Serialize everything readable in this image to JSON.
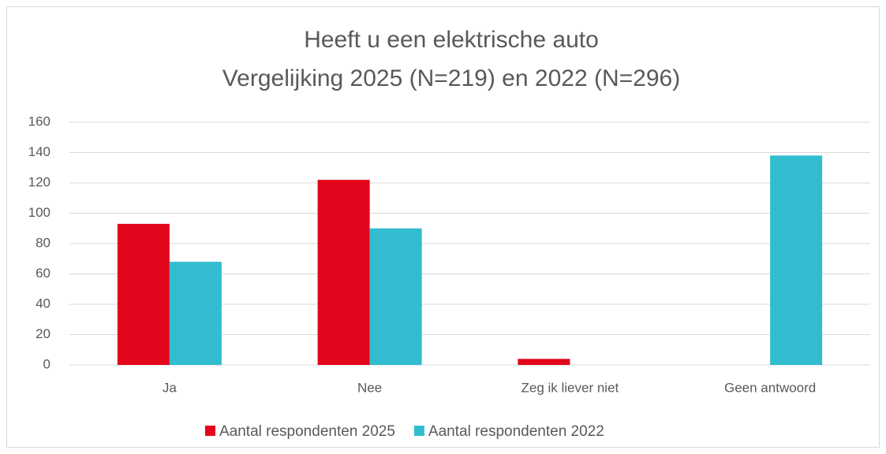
{
  "chart_data": {
    "type": "bar",
    "title": [
      "Heeft u een elektrische auto",
      "Vergelijking 2025 (N=219) en 2022 (N=296)"
    ],
    "categories": [
      "Ja",
      "Nee",
      "Zeg ik liever niet",
      "Geen antwoord"
    ],
    "series": [
      {
        "name": "Aantal respondenten 2025",
        "color": "#e3051b",
        "values": [
          93,
          122,
          4,
          0
        ]
      },
      {
        "name": "Aantal respondenten 2022",
        "color": "#32bccf",
        "values": [
          68,
          90,
          0,
          138
        ]
      }
    ],
    "ylim": [
      0,
      160
    ],
    "yticks": [
      0,
      20,
      40,
      60,
      80,
      100,
      120,
      140,
      160
    ],
    "grid": true,
    "legend": "bottom"
  }
}
